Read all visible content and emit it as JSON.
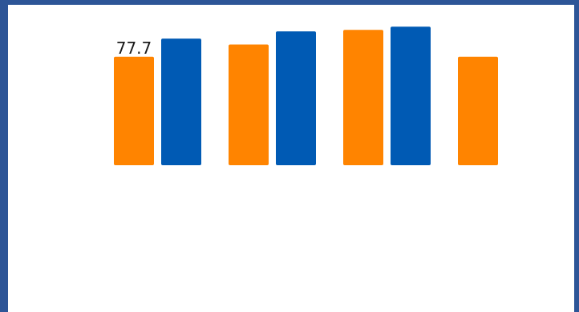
{
  "chart_data": {
    "type": "bar",
    "title": "",
    "xlabel": "",
    "ylabel": "",
    "ylim": [
      0,
      100
    ],
    "grid": false,
    "legend": "none",
    "categories": [
      "",
      "",
      "",
      ""
    ],
    "series": [
      {
        "color": "#ff8400",
        "values": [
          77.7,
          86.5,
          97.0,
          77.7
        ]
      },
      {
        "color": "#005ab4",
        "values": [
          90.7,
          95.9,
          99.3,
          null
        ]
      }
    ],
    "data_labels": [
      {
        "series": 0,
        "index": 0,
        "text": "77.7"
      }
    ]
  }
}
